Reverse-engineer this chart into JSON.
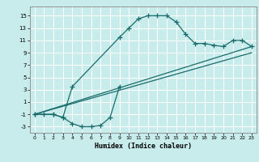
{
  "xlabel": "Humidex (Indice chaleur)",
  "bg_color": "#c8ecec",
  "grid_color": "#ffffff",
  "line_color": "#1a6b6b",
  "xlim": [
    -0.5,
    23.5
  ],
  "ylim": [
    -4,
    16.5
  ],
  "xticks": [
    0,
    1,
    2,
    3,
    4,
    5,
    6,
    7,
    8,
    9,
    10,
    11,
    12,
    13,
    14,
    15,
    16,
    17,
    18,
    19,
    20,
    21,
    22,
    23
  ],
  "yticks": [
    -3,
    -1,
    1,
    3,
    5,
    7,
    9,
    11,
    13,
    15
  ],
  "upper_curve_x": [
    0,
    1,
    2,
    3,
    4,
    9,
    10,
    11,
    12,
    13,
    14,
    15,
    16,
    17,
    18,
    19,
    20,
    21,
    22,
    23
  ],
  "upper_curve_y": [
    -1,
    -1,
    -1,
    -1.5,
    3.5,
    11.5,
    13,
    14.5,
    15,
    15,
    15,
    14,
    12,
    10.5,
    10.5,
    10.2,
    10,
    11,
    11,
    10
  ],
  "lower_curve_x": [
    0,
    2,
    3,
    4,
    5,
    6,
    7,
    8,
    9
  ],
  "lower_curve_y": [
    -1,
    -1,
    -1.5,
    -2.5,
    -3,
    -3,
    -2.8,
    -1.5,
    3.5
  ],
  "line1_x": [
    0,
    23
  ],
  "line1_y": [
    -1,
    10
  ],
  "line2_x": [
    0,
    23
  ],
  "line2_y": [
    -1,
    9
  ],
  "xlabel_fontsize": 6,
  "tick_fontsize": 5
}
